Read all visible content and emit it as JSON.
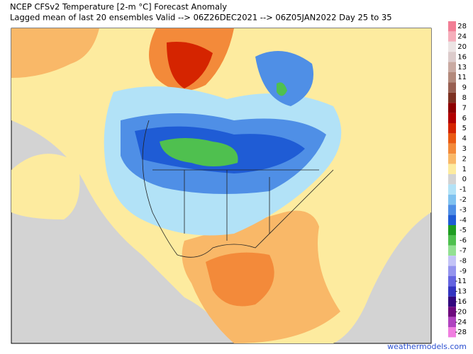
{
  "title": "NCEP CFSv2 Temperature [2-m °C] Forecast Anomaly",
  "subtitle": "Lagged mean of last 20 ensembles Valid --> 06Z26DEC2021 --> 06Z05JAN2022  Day 25 to 35",
  "credit": "weathermodels.com",
  "colorbar": {
    "levels": [
      28,
      24,
      20,
      16,
      13,
      11,
      9,
      8,
      7,
      6,
      5,
      4,
      3,
      2,
      1,
      0,
      -1,
      -2,
      -3,
      -4,
      -5,
      -6,
      -7,
      -8,
      -9,
      -11,
      -13,
      -16,
      -20,
      -24,
      -28
    ],
    "colors": [
      "#f27f96",
      "#f5aebb",
      "#ece4e4",
      "#dccbcb",
      "#c9aaa2",
      "#b38a7c",
      "#986052",
      "#7d3222",
      "#8e0000",
      "#b20000",
      "#d52400",
      "#ea5a12",
      "#f38a3a",
      "#f9b868",
      "#fdeb9f",
      "#d3d3d3",
      "#b2e2f7",
      "#80c2f0",
      "#4f8fe6",
      "#1f5cd5",
      "#1f9d22",
      "#4fc04f",
      "#93e093",
      "#c3c3f7",
      "#9494ee",
      "#6464e0",
      "#3434c0",
      "#33087f",
      "#6e0a7e",
      "#b043c0",
      "#f07fe0"
    ]
  }
}
